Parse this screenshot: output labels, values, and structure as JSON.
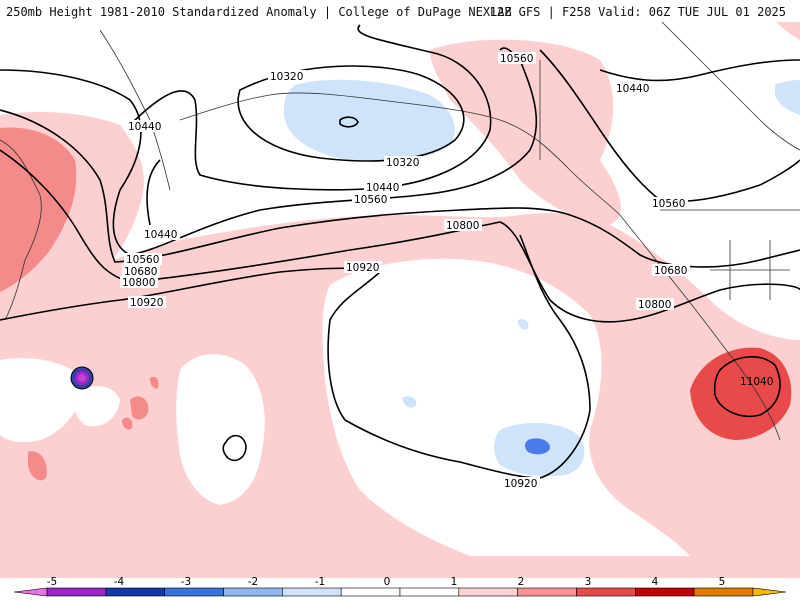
{
  "header": {
    "title_left": "250mb Height 1981-2010 Standardized Anomaly | College of DuPage NEXLAB",
    "title_right": "12Z GFS | F258 Valid: 06Z TUE JUL 01 2025"
  },
  "contour_labels": [
    "10320",
    "10440",
    "10560",
    "10680",
    "10800",
    "10920",
    "11040"
  ],
  "colorbar": {
    "ticks": [
      "-5",
      "-4",
      "-3",
      "-2",
      "-1",
      "0",
      "1",
      "2",
      "3",
      "4",
      "5"
    ],
    "colors": [
      "#e873e8",
      "#9b27c6",
      "#1339a8",
      "#3a73e0",
      "#8fb6f0",
      "#cfe3fa",
      "#ffffff",
      "#ffffff",
      "#fcd3d3",
      "#f59393",
      "#e84a4a",
      "#c20000",
      "#e37a00",
      "#f7b800"
    ]
  },
  "palette": {
    "pos1": "#fcd0d0",
    "pos2": "#f48a8a",
    "pos3": "#e84a4a",
    "neg1": "#cfe3fa",
    "neg2": "#4a7be8",
    "neg_extreme": "#c43fd0",
    "coast": "#333333",
    "contour": "#000000"
  }
}
